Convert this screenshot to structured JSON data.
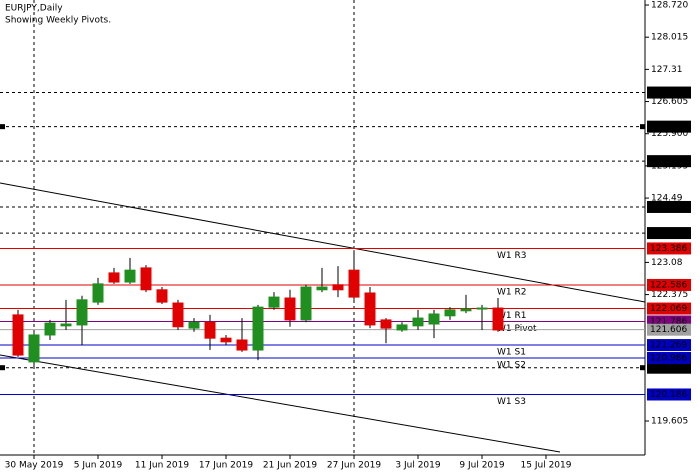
{
  "chart_data": {
    "type": "candlestick",
    "title": "EURJPY,Daily",
    "subtitle": "Showing Weekly Pivots.",
    "categories": [
      null,
      "30 May 2019",
      null,
      null,
      null,
      "5 Jun 2019",
      null,
      null,
      null,
      "11 Jun 2019",
      null,
      null,
      null,
      "17 Jun 2019",
      null,
      null,
      null,
      "21 Jun 2019",
      null,
      null,
      null,
      "27 Jun 2019",
      null,
      null,
      null,
      "3 Jul 2019",
      null,
      null,
      null,
      "9 Jul 2019",
      null,
      null,
      null,
      "15 Jul 2019"
    ],
    "open": [
      121.93,
      120.9,
      121.49,
      121.69,
      121.71,
      122.21,
      122.85,
      122.65,
      122.96,
      122.48,
      122.19,
      121.64,
      121.77,
      121.42,
      121.38,
      121.16,
      122.1,
      122.3,
      121.82,
      122.48,
      122.59,
      122.91,
      122.41,
      121.82,
      121.6,
      121.69,
      121.73,
      121.91,
      122.02,
      122.06,
      122.08,
      null,
      null,
      null
    ],
    "high": [
      122.04,
      121.53,
      121.82,
      122.26,
      122.35,
      122.74,
      122.96,
      123.18,
      123.02,
      122.54,
      122.26,
      121.86,
      121.93,
      121.49,
      121.86,
      122.15,
      122.43,
      122.48,
      122.59,
      122.96,
      123.0,
      123.35,
      122.54,
      121.86,
      121.77,
      122.04,
      122.04,
      122.1,
      122.37,
      122.15,
      122.3,
      null,
      null,
      null
    ],
    "low": [
      121.01,
      120.77,
      121.38,
      121.6,
      121.27,
      122.15,
      122.61,
      122.61,
      122.43,
      122.17,
      121.6,
      121.56,
      121.16,
      121.27,
      121.12,
      120.94,
      122.04,
      121.67,
      121.77,
      122.43,
      122.32,
      122.26,
      121.64,
      121.31,
      121.56,
      121.6,
      121.42,
      121.82,
      121.97,
      121.6,
      121.56,
      null,
      null,
      null
    ],
    "close": [
      121.05,
      121.49,
      121.75,
      121.73,
      122.26,
      122.61,
      122.65,
      122.91,
      122.48,
      122.21,
      121.67,
      121.77,
      121.42,
      121.34,
      121.16,
      122.1,
      122.32,
      121.82,
      122.54,
      122.54,
      122.48,
      122.32,
      121.71,
      121.64,
      121.71,
      121.86,
      121.95,
      122.04,
      122.06,
      122.08,
      121.6,
      null,
      null,
      null
    ],
    "up_color": "#1f8f1f",
    "down_color": "#e00000",
    "ylim": [
      118.86,
      128.83
    ],
    "yticks": [
      {
        "value": 128.72,
        "label": "128.720"
      },
      128.015,
      127.31,
      126.605,
      {
        "value": 125.9,
        "label": "125.900"
      },
      125.195,
      124.49,
      123.08,
      122.375,
      119.605
    ],
    "pivots": [
      {
        "name": "W1 R3",
        "value": 123.386,
        "label": "123.386",
        "color": "#e00000"
      },
      {
        "name": "W1 R2",
        "value": 122.586,
        "label": "122.586",
        "color": "#e00000"
      },
      {
        "name": "W1 R1",
        "value": 122.069,
        "label": "122.069",
        "color": "#e00000"
      },
      {
        "name": "W1 Pivot",
        "value": 121.786,
        "label": "121.786",
        "color": "#800080"
      },
      {
        "name": "W1 S1",
        "value": 121.269,
        "label": "121.269",
        "color": "#0000c0"
      },
      {
        "name": "W1 S2",
        "value": 120.986,
        "label": "120.986",
        "color": "#0000c0"
      },
      {
        "name": "W1 S3",
        "value": 120.186,
        "label": "120.186",
        "color": "#0000c0"
      }
    ],
    "levels": [
      {
        "value": 126.802,
        "label": "126.802",
        "marker": false
      },
      {
        "value": 126.055,
        "label": "126.055",
        "marker": true
      },
      {
        "value": 125.299,
        "label": "125.299",
        "marker": false
      },
      {
        "value": 124.295,
        "label": "124.295",
        "marker": false
      },
      {
        "value": 123.723,
        "label": "123.723",
        "marker": false
      },
      {
        "value": 120.773,
        "label": "120.773",
        "marker": true
      }
    ],
    "current_price": {
      "value": 121.606,
      "label": "121.606",
      "color": "#a0a0a0"
    }
  }
}
